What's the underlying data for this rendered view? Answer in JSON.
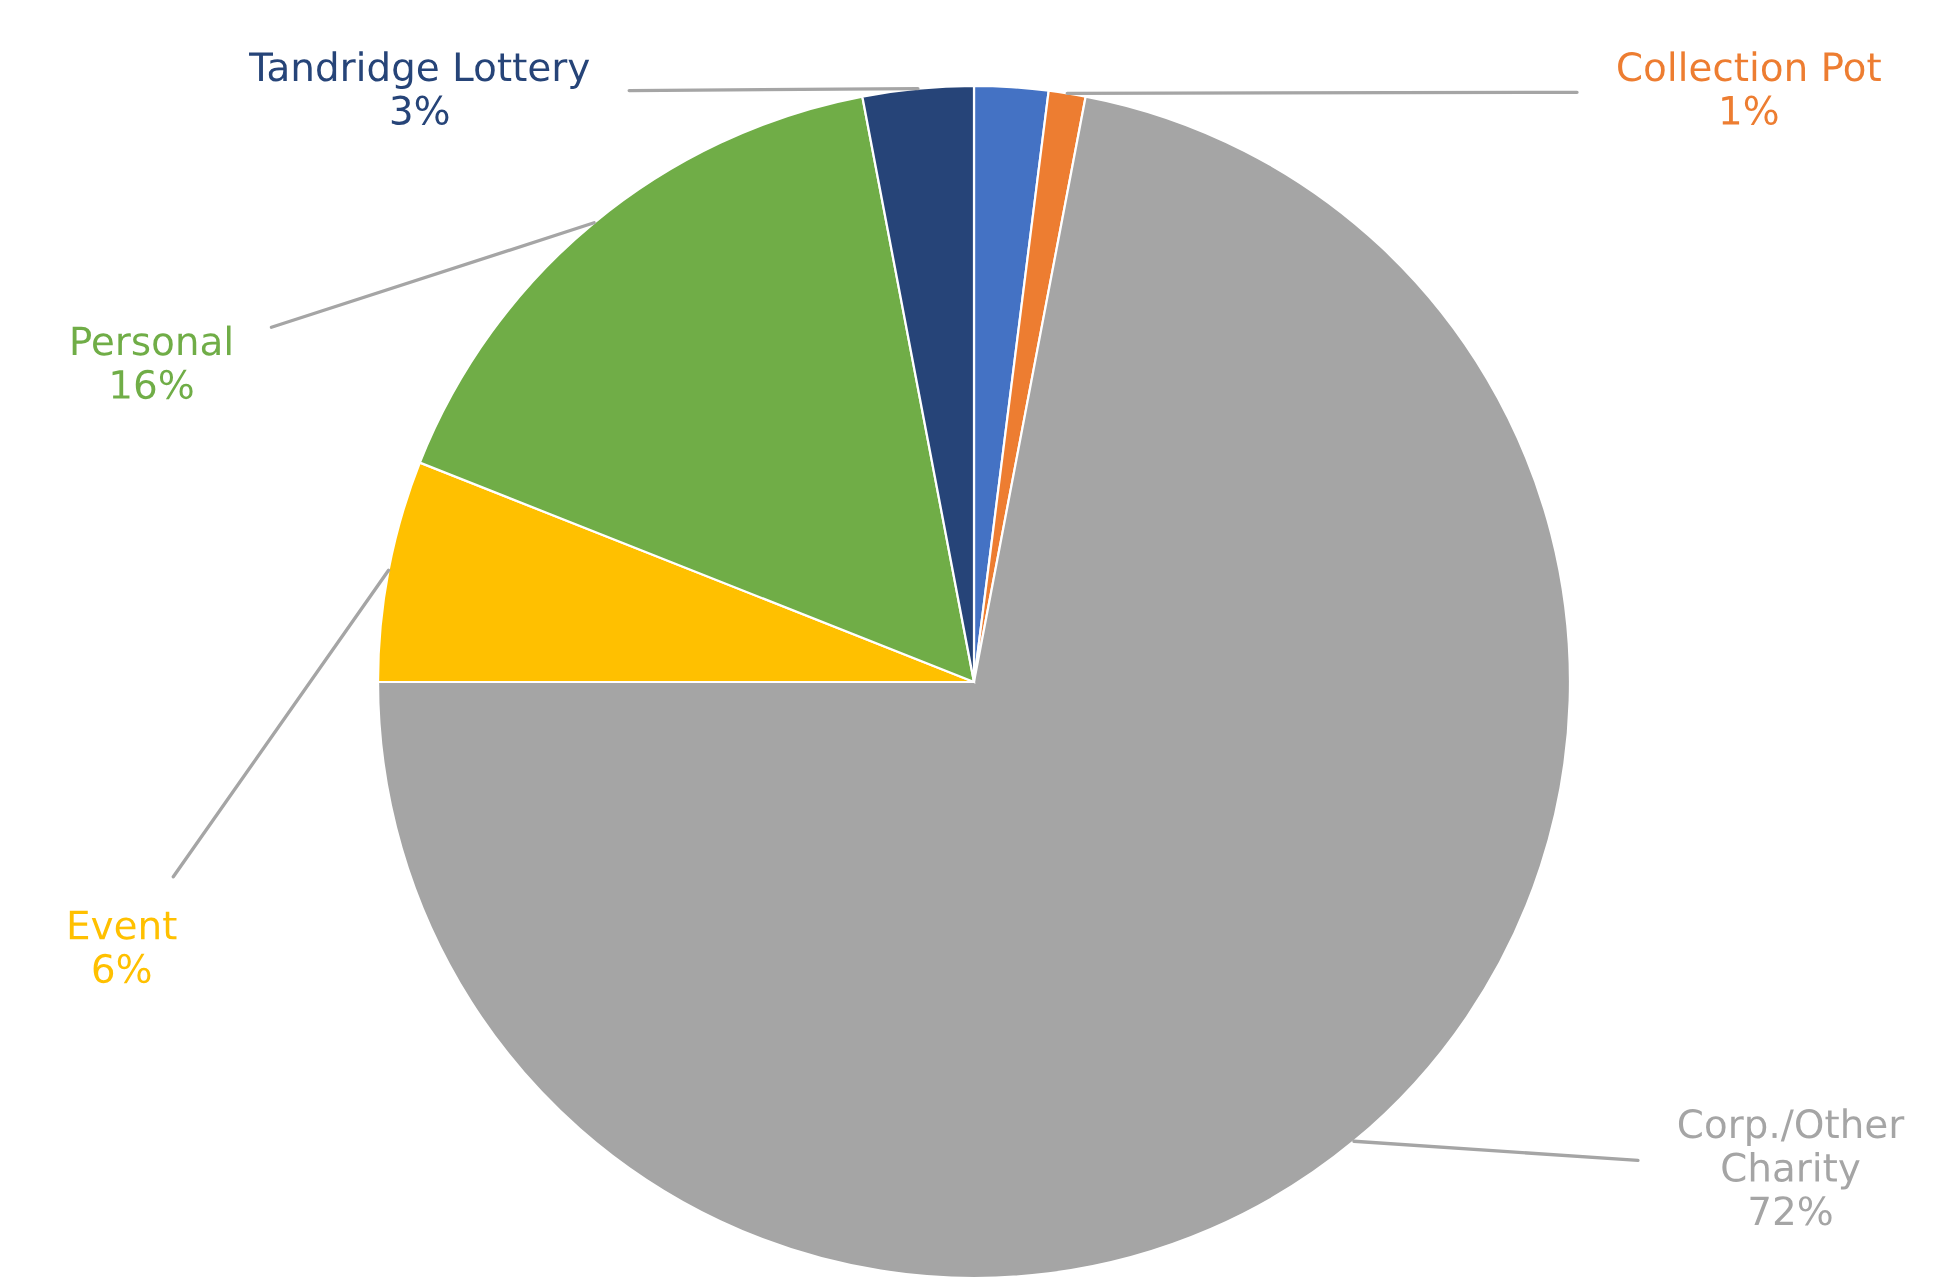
{
  "chart_data": {
    "type": "pie",
    "categories": [
      null,
      "Collection Pot",
      "Corp./Other\nCharity",
      "Event",
      "Personal",
      "Tandridge Lottery"
    ],
    "values": [
      2,
      1,
      72,
      6,
      16,
      3
    ],
    "value_labels": [
      null,
      "1%",
      "72%",
      "6%",
      "16%",
      "3%"
    ],
    "colors": [
      "#4472c4",
      "#ed7d31",
      "#a5a5a5",
      "#ffc000",
      "#70ad47",
      "#264478"
    ],
    "legend": false
  }
}
